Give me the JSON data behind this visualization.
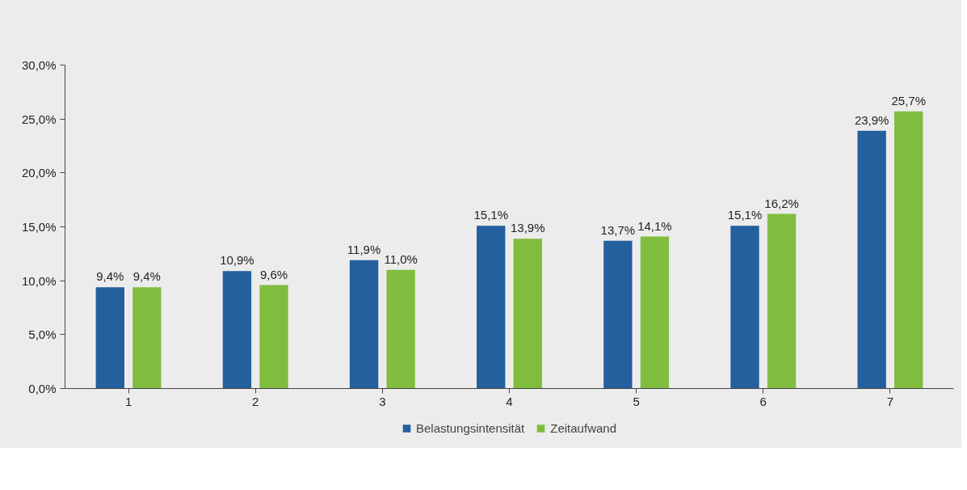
{
  "chart_data": {
    "type": "bar",
    "categories": [
      "1",
      "2",
      "3",
      "4",
      "5",
      "6",
      "7"
    ],
    "series": [
      {
        "name": "Belastungsintensität",
        "color": "#245f9e",
        "values": [
          9.4,
          10.9,
          11.9,
          15.1,
          13.7,
          15.1,
          23.9
        ],
        "value_labels": [
          "9,4%",
          "10,9%",
          "11,9%",
          "15,1%",
          "13,7%",
          "15,1%",
          "23,9%"
        ]
      },
      {
        "name": "Zeitaufwand",
        "color": "#80bd3f",
        "values": [
          9.4,
          9.6,
          11.0,
          13.9,
          14.1,
          16.2,
          25.7
        ],
        "value_labels": [
          "9,4%",
          "9,6%",
          "11,0%",
          "13,9%",
          "14,1%",
          "16,2%",
          "25,7%"
        ]
      }
    ],
    "ylim": [
      0,
      30
    ],
    "yticks": [
      {
        "value": 0,
        "label": "0,0%"
      },
      {
        "value": 5,
        "label": "5,0%"
      },
      {
        "value": 10,
        "label": "10,0%"
      },
      {
        "value": 15,
        "label": "15,0%"
      },
      {
        "value": 20,
        "label": "20,0%"
      },
      {
        "value": 25,
        "label": "25,0%"
      },
      {
        "value": 30,
        "label": "30,0%"
      }
    ],
    "grid": false,
    "legend": "bottom"
  }
}
